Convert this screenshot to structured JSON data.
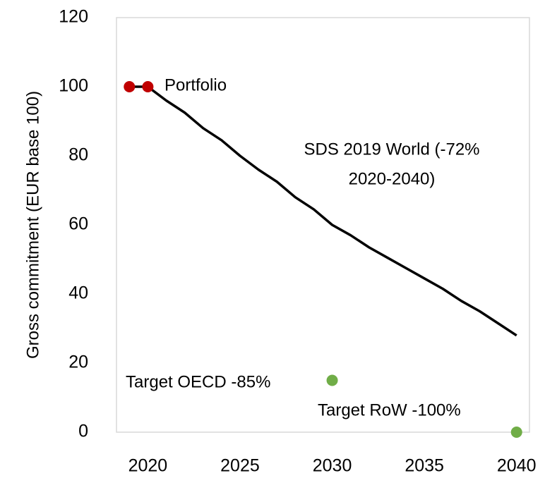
{
  "chart_data": {
    "type": "line",
    "y_label": "Gross commitment  (EUR base 100)",
    "xlim": [
      2018.3,
      2040.7
    ],
    "xticks": [
      2020,
      2025,
      2030,
      2035,
      2040
    ],
    "ylim": [
      0,
      120
    ],
    "yticks": [
      0,
      20,
      40,
      60,
      80,
      100,
      120
    ],
    "grid": false,
    "series": [
      {
        "mode": "line",
        "color": "#000000",
        "x": [
          2019,
          2020,
          2021,
          2022,
          2023,
          2024,
          2025,
          2026,
          2027,
          2028,
          2029,
          2030,
          2031,
          2032,
          2033,
          2034,
          2035,
          2036,
          2037,
          2038,
          2039,
          2040
        ],
        "values": [
          100,
          100,
          96,
          92.5,
          88,
          84.5,
          80,
          76,
          72.5,
          68,
          64.5,
          60,
          57,
          53.5,
          50.5,
          47.5,
          44.5,
          41.5,
          38,
          35,
          31.5,
          28
        ]
      },
      {
        "mode": "scatter",
        "color": "#c00000",
        "x": [
          2019,
          2020
        ],
        "values": [
          100,
          100
        ]
      },
      {
        "mode": "scatter",
        "color": "#70ad47",
        "x": [
          2030,
          2040
        ],
        "values": [
          15,
          0
        ]
      }
    ],
    "annotations": [
      [
        "Portfolio"
      ],
      [
        "SDS 2019 World (-72%",
        "2020-2040)"
      ],
      [
        "Target OECD -85%"
      ],
      [
        "Target RoW -100%"
      ]
    ]
  }
}
